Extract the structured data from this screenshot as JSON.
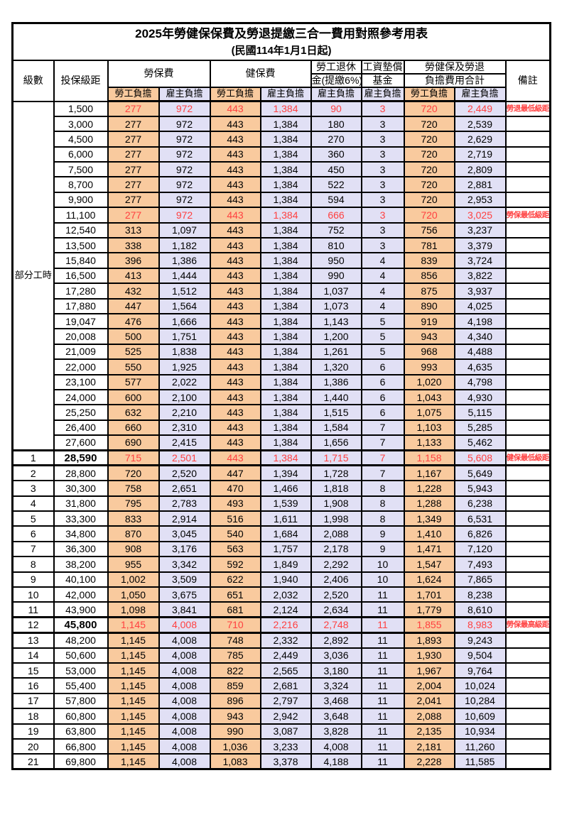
{
  "title": "2025年勞健保保費及勞退提繳三合一費用對照參考用表",
  "subtitle": "(民國114年1月1日起)",
  "header": {
    "level": "級數",
    "bracket": "投保級距",
    "labor_ins": "勞保費",
    "health_ins": "健保費",
    "pension_line1": "勞工退休",
    "pension_line2": "金(提繳6%)",
    "fund_line1": "工資墊償",
    "fund_line2": "基金",
    "total_line1": "勞健保及勞退",
    "total_line2": "負擔費用合計",
    "remark": "備註",
    "employee": "勞工負擔",
    "employer": "雇主負擔"
  },
  "part_time": {
    "label": "部分工時",
    "rowspan": 23
  },
  "colors": {
    "employee_bg": "#F9CA9E",
    "employer_bg": "#E1E0F5",
    "highlight_text": "#FF4040",
    "border": "#000000",
    "background": "#FFFFFF"
  },
  "rows": [
    {
      "level": "",
      "bracket": "1,500",
      "fees": [
        "277",
        "972",
        "443",
        "1,384",
        "90",
        "3",
        "720",
        "2,449"
      ],
      "remark": "勞退最低級距",
      "highlight": true,
      "thick": false
    },
    {
      "level": "",
      "bracket": "3,000",
      "fees": [
        "277",
        "972",
        "443",
        "1,384",
        "180",
        "3",
        "720",
        "2,539"
      ],
      "remark": "",
      "highlight": false,
      "thick": false
    },
    {
      "level": "",
      "bracket": "4,500",
      "fees": [
        "277",
        "972",
        "443",
        "1,384",
        "270",
        "3",
        "720",
        "2,629"
      ],
      "remark": "",
      "highlight": false,
      "thick": false
    },
    {
      "level": "",
      "bracket": "6,000",
      "fees": [
        "277",
        "972",
        "443",
        "1,384",
        "360",
        "3",
        "720",
        "2,719"
      ],
      "remark": "",
      "highlight": false,
      "thick": false
    },
    {
      "level": "",
      "bracket": "7,500",
      "fees": [
        "277",
        "972",
        "443",
        "1,384",
        "450",
        "3",
        "720",
        "2,809"
      ],
      "remark": "",
      "highlight": false,
      "thick": false
    },
    {
      "level": "",
      "bracket": "8,700",
      "fees": [
        "277",
        "972",
        "443",
        "1,384",
        "522",
        "3",
        "720",
        "2,881"
      ],
      "remark": "",
      "highlight": false,
      "thick": false
    },
    {
      "level": "",
      "bracket": "9,900",
      "fees": [
        "277",
        "972",
        "443",
        "1,384",
        "594",
        "3",
        "720",
        "2,953"
      ],
      "remark": "",
      "highlight": false,
      "thick": false
    },
    {
      "level": "",
      "bracket": "11,100",
      "fees": [
        "277",
        "972",
        "443",
        "1,384",
        "666",
        "3",
        "720",
        "3,025"
      ],
      "remark": "勞保最低級距",
      "highlight": true,
      "thick": false
    },
    {
      "level": "",
      "bracket": "12,540",
      "fees": [
        "313",
        "1,097",
        "443",
        "1,384",
        "752",
        "3",
        "756",
        "3,237"
      ],
      "remark": "",
      "highlight": false,
      "thick": false
    },
    {
      "level": "",
      "bracket": "13,500",
      "fees": [
        "338",
        "1,182",
        "443",
        "1,384",
        "810",
        "3",
        "781",
        "3,379"
      ],
      "remark": "",
      "highlight": false,
      "thick": false
    },
    {
      "level": "",
      "bracket": "15,840",
      "fees": [
        "396",
        "1,386",
        "443",
        "1,384",
        "950",
        "4",
        "839",
        "3,724"
      ],
      "remark": "",
      "highlight": false,
      "thick": false
    },
    {
      "level": "",
      "bracket": "16,500",
      "fees": [
        "413",
        "1,444",
        "443",
        "1,384",
        "990",
        "4",
        "856",
        "3,822"
      ],
      "remark": "",
      "highlight": false,
      "thick": false
    },
    {
      "level": "",
      "bracket": "17,280",
      "fees": [
        "432",
        "1,512",
        "443",
        "1,384",
        "1,037",
        "4",
        "875",
        "3,937"
      ],
      "remark": "",
      "highlight": false,
      "thick": false
    },
    {
      "level": "",
      "bracket": "17,880",
      "fees": [
        "447",
        "1,564",
        "443",
        "1,384",
        "1,073",
        "4",
        "890",
        "4,025"
      ],
      "remark": "",
      "highlight": false,
      "thick": false
    },
    {
      "level": "",
      "bracket": "19,047",
      "fees": [
        "476",
        "1,666",
        "443",
        "1,384",
        "1,143",
        "5",
        "919",
        "4,198"
      ],
      "remark": "",
      "highlight": false,
      "thick": false
    },
    {
      "level": "",
      "bracket": "20,008",
      "fees": [
        "500",
        "1,751",
        "443",
        "1,384",
        "1,200",
        "5",
        "943",
        "4,340"
      ],
      "remark": "",
      "highlight": false,
      "thick": false
    },
    {
      "level": "",
      "bracket": "21,009",
      "fees": [
        "525",
        "1,838",
        "443",
        "1,384",
        "1,261",
        "5",
        "968",
        "4,488"
      ],
      "remark": "",
      "highlight": false,
      "thick": false
    },
    {
      "level": "",
      "bracket": "22,000",
      "fees": [
        "550",
        "1,925",
        "443",
        "1,384",
        "1,320",
        "6",
        "993",
        "4,635"
      ],
      "remark": "",
      "highlight": false,
      "thick": false
    },
    {
      "level": "",
      "bracket": "23,100",
      "fees": [
        "577",
        "2,022",
        "443",
        "1,384",
        "1,386",
        "6",
        "1,020",
        "4,798"
      ],
      "remark": "",
      "highlight": false,
      "thick": false
    },
    {
      "level": "",
      "bracket": "24,000",
      "fees": [
        "600",
        "2,100",
        "443",
        "1,384",
        "1,440",
        "6",
        "1,043",
        "4,930"
      ],
      "remark": "",
      "highlight": false,
      "thick": false
    },
    {
      "level": "",
      "bracket": "25,250",
      "fees": [
        "632",
        "2,210",
        "443",
        "1,384",
        "1,515",
        "6",
        "1,075",
        "5,115"
      ],
      "remark": "",
      "highlight": false,
      "thick": false
    },
    {
      "level": "",
      "bracket": "26,400",
      "fees": [
        "660",
        "2,310",
        "443",
        "1,384",
        "1,584",
        "7",
        "1,103",
        "5,285"
      ],
      "remark": "",
      "highlight": false,
      "thick": false
    },
    {
      "level": "",
      "bracket": "27,600",
      "fees": [
        "690",
        "2,415",
        "443",
        "1,384",
        "1,656",
        "7",
        "1,133",
        "5,462"
      ],
      "remark": "",
      "highlight": false,
      "thick": false
    },
    {
      "level": "1",
      "bracket": "28,590",
      "fees": [
        "715",
        "2,501",
        "443",
        "1,384",
        "1,715",
        "7",
        "1,158",
        "5,608"
      ],
      "remark": "健保最低級距",
      "highlight": true,
      "thick": true
    },
    {
      "level": "2",
      "bracket": "28,800",
      "fees": [
        "720",
        "2,520",
        "447",
        "1,394",
        "1,728",
        "7",
        "1,167",
        "5,649"
      ],
      "remark": "",
      "highlight": false,
      "thick": false
    },
    {
      "level": "3",
      "bracket": "30,300",
      "fees": [
        "758",
        "2,651",
        "470",
        "1,466",
        "1,818",
        "8",
        "1,228",
        "5,943"
      ],
      "remark": "",
      "highlight": false,
      "thick": false
    },
    {
      "level": "4",
      "bracket": "31,800",
      "fees": [
        "795",
        "2,783",
        "493",
        "1,539",
        "1,908",
        "8",
        "1,288",
        "6,238"
      ],
      "remark": "",
      "highlight": false,
      "thick": false
    },
    {
      "level": "5",
      "bracket": "33,300",
      "fees": [
        "833",
        "2,914",
        "516",
        "1,611",
        "1,998",
        "8",
        "1,349",
        "6,531"
      ],
      "remark": "",
      "highlight": false,
      "thick": false
    },
    {
      "level": "6",
      "bracket": "34,800",
      "fees": [
        "870",
        "3,045",
        "540",
        "1,684",
        "2,088",
        "9",
        "1,410",
        "6,826"
      ],
      "remark": "",
      "highlight": false,
      "thick": false
    },
    {
      "level": "7",
      "bracket": "36,300",
      "fees": [
        "908",
        "3,176",
        "563",
        "1,757",
        "2,178",
        "9",
        "1,471",
        "7,120"
      ],
      "remark": "",
      "highlight": false,
      "thick": false
    },
    {
      "level": "8",
      "bracket": "38,200",
      "fees": [
        "955",
        "3,342",
        "592",
        "1,849",
        "2,292",
        "10",
        "1,547",
        "7,493"
      ],
      "remark": "",
      "highlight": false,
      "thick": false
    },
    {
      "level": "9",
      "bracket": "40,100",
      "fees": [
        "1,002",
        "3,509",
        "622",
        "1,940",
        "2,406",
        "10",
        "1,624",
        "7,865"
      ],
      "remark": "",
      "highlight": false,
      "thick": false
    },
    {
      "level": "10",
      "bracket": "42,000",
      "fees": [
        "1,050",
        "3,675",
        "651",
        "2,032",
        "2,520",
        "11",
        "1,701",
        "8,238"
      ],
      "remark": "",
      "highlight": false,
      "thick": false
    },
    {
      "level": "11",
      "bracket": "43,900",
      "fees": [
        "1,098",
        "3,841",
        "681",
        "2,124",
        "2,634",
        "11",
        "1,779",
        "8,610"
      ],
      "remark": "",
      "highlight": false,
      "thick": false
    },
    {
      "level": "12",
      "bracket": "45,800",
      "fees": [
        "1,145",
        "4,008",
        "710",
        "2,216",
        "2,748",
        "11",
        "1,855",
        "8,983"
      ],
      "remark": "勞保最高級距",
      "highlight": true,
      "thick": true
    },
    {
      "level": "13",
      "bracket": "48,200",
      "fees": [
        "1,145",
        "4,008",
        "748",
        "2,332",
        "2,892",
        "11",
        "1,893",
        "9,243"
      ],
      "remark": "",
      "highlight": false,
      "thick": false
    },
    {
      "level": "14",
      "bracket": "50,600",
      "fees": [
        "1,145",
        "4,008",
        "785",
        "2,449",
        "3,036",
        "11",
        "1,930",
        "9,504"
      ],
      "remark": "",
      "highlight": false,
      "thick": false
    },
    {
      "level": "15",
      "bracket": "53,000",
      "fees": [
        "1,145",
        "4,008",
        "822",
        "2,565",
        "3,180",
        "11",
        "1,967",
        "9,764"
      ],
      "remark": "",
      "highlight": false,
      "thick": false
    },
    {
      "level": "16",
      "bracket": "55,400",
      "fees": [
        "1,145",
        "4,008",
        "859",
        "2,681",
        "3,324",
        "11",
        "2,004",
        "10,024"
      ],
      "remark": "",
      "highlight": false,
      "thick": false
    },
    {
      "level": "17",
      "bracket": "57,800",
      "fees": [
        "1,145",
        "4,008",
        "896",
        "2,797",
        "3,468",
        "11",
        "2,041",
        "10,284"
      ],
      "remark": "",
      "highlight": false,
      "thick": false
    },
    {
      "level": "18",
      "bracket": "60,800",
      "fees": [
        "1,145",
        "4,008",
        "943",
        "2,942",
        "3,648",
        "11",
        "2,088",
        "10,609"
      ],
      "remark": "",
      "highlight": false,
      "thick": false
    },
    {
      "level": "19",
      "bracket": "63,800",
      "fees": [
        "1,145",
        "4,008",
        "990",
        "3,087",
        "3,828",
        "11",
        "2,135",
        "10,934"
      ],
      "remark": "",
      "highlight": false,
      "thick": false
    },
    {
      "level": "20",
      "bracket": "66,800",
      "fees": [
        "1,145",
        "4,008",
        "1,036",
        "3,233",
        "4,008",
        "11",
        "2,181",
        "11,260"
      ],
      "remark": "",
      "highlight": false,
      "thick": false
    },
    {
      "level": "21",
      "bracket": "69,800",
      "fees": [
        "1,145",
        "4,008",
        "1,083",
        "3,378",
        "4,188",
        "11",
        "2,228",
        "11,585"
      ],
      "remark": "",
      "highlight": false,
      "thick": false
    }
  ]
}
